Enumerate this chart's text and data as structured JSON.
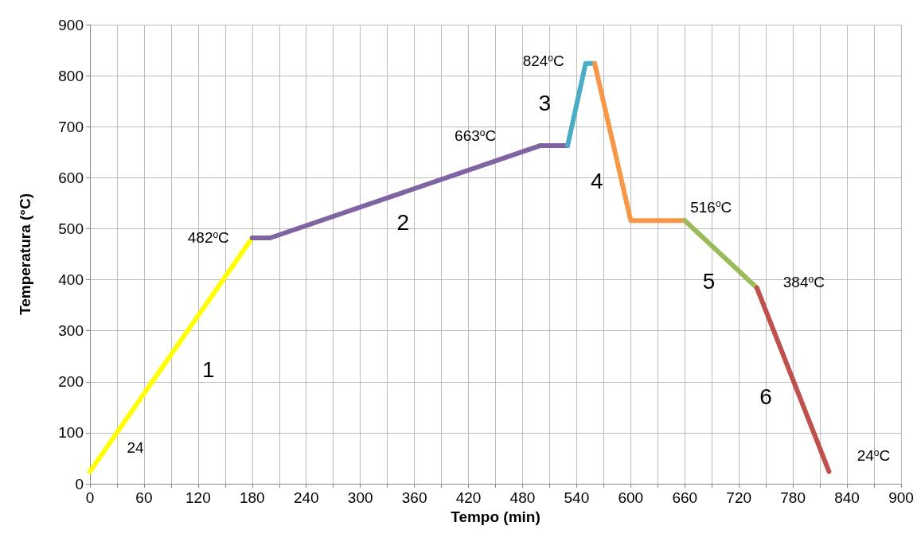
{
  "chart_data": {
    "type": "line",
    "xlabel": "Tempo (min)",
    "ylabel": "Temperatura (°C)",
    "xlim": [
      0,
      900
    ],
    "ylim": [
      0,
      900
    ],
    "xticks": [
      0,
      {
        "value": 30,
        "label": null
      },
      60,
      {
        "value": 90,
        "label": null
      },
      120,
      {
        "value": 150,
        "label": null
      },
      180,
      {
        "value": 210,
        "label": null
      },
      240,
      {
        "value": 270,
        "label": null
      },
      300,
      {
        "value": 330,
        "label": null
      },
      360,
      {
        "value": 390,
        "label": null
      },
      420,
      {
        "value": 450,
        "label": null
      },
      480,
      {
        "value": 510,
        "label": null
      },
      540,
      {
        "value": 570,
        "label": null
      },
      600,
      {
        "value": 630,
        "label": null
      },
      660,
      {
        "value": 690,
        "label": null
      },
      720,
      {
        "value": 750,
        "label": null
      },
      780,
      {
        "value": 810,
        "label": null
      },
      840,
      {
        "value": 870,
        "label": null
      },
      900
    ],
    "yticks": [
      0,
      100,
      200,
      300,
      400,
      500,
      600,
      700,
      800,
      900
    ],
    "grid": true,
    "marker": "none",
    "line_style": "solid",
    "series": [
      {
        "color": "#ffff00",
        "x": [
          0,
          180
        ],
        "values": [
          24,
          482
        ]
      },
      {
        "color": "#8064a2",
        "x": [
          180,
          200,
          500,
          530
        ],
        "values": [
          482,
          482,
          663,
          663
        ]
      },
      {
        "color": "#4bacc6",
        "x": [
          530,
          550,
          560
        ],
        "values": [
          663,
          824,
          824
        ]
      },
      {
        "color": "#f79646",
        "x": [
          560,
          600,
          660
        ],
        "values": [
          824,
          516,
          516
        ]
      },
      {
        "color": "#9bbb59",
        "x": [
          660,
          740
        ],
        "values": [
          516,
          384
        ]
      },
      {
        "color": "#c0504d",
        "x": [
          740,
          820
        ],
        "values": [
          384,
          24
        ]
      }
    ],
    "annotations": [
      {
        "text": "24",
        "x": 0,
        "y": 24
      },
      {
        "text": "482$^{o}$C",
        "x": 180,
        "y": 482
      },
      {
        "text": "663$^{o}$C",
        "x": 500,
        "y": 663
      },
      {
        "text": "824$^{o}$C",
        "x": 550,
        "y": 824
      },
      {
        "text": "516$^{o}$C",
        "x": 660,
        "y": 516
      },
      {
        "text": "384$^{o}$C",
        "x": 740,
        "y": 384
      },
      {
        "text": "24$^{o}$C",
        "x": 820,
        "y": 24
      },
      {
        "text": "1",
        "x": 90,
        "y": 253
      },
      {
        "text": "2",
        "x": 350,
        "y": 572.5
      },
      {
        "text": "3",
        "x": 540,
        "y": 743.5
      },
      {
        "text": "4",
        "x": 580,
        "y": 670
      },
      {
        "text": "5",
        "x": 700,
        "y": 450
      },
      {
        "text": "6",
        "x": 780,
        "y": 204
      }
    ]
  }
}
